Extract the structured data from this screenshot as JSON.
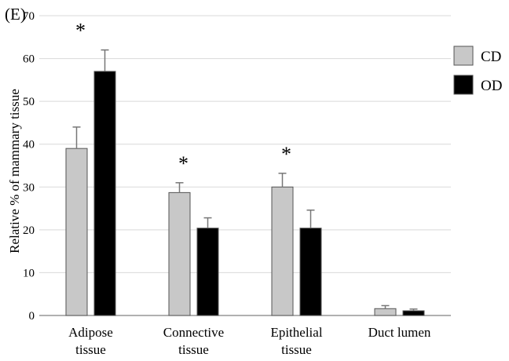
{
  "panel_label": "(E)",
  "chart_data": {
    "type": "bar",
    "title": "",
    "xlabel": "",
    "ylabel": "Relative  % of mammary  tissue",
    "ylim": [
      0,
      70
    ],
    "yticks": [
      0,
      10,
      20,
      30,
      40,
      50,
      60,
      70
    ],
    "grid": true,
    "legend_position": "right",
    "categories": [
      [
        "Adipose",
        "tissue"
      ],
      [
        "Connective",
        "tissue"
      ],
      [
        "Epithelial",
        "tissue"
      ],
      [
        "Duct lumen"
      ]
    ],
    "series": [
      {
        "name": "CD",
        "color": "#c8c8c8",
        "values": [
          39,
          28.7,
          30,
          1.6
        ],
        "errors": [
          5,
          2.3,
          3.2,
          0.7
        ]
      },
      {
        "name": "OD",
        "color": "#000000",
        "values": [
          57,
          20.4,
          20.4,
          1.1
        ],
        "errors": [
          5,
          2.4,
          4.2,
          0.4
        ]
      }
    ],
    "significance": [
      "*",
      "*",
      "*",
      ""
    ]
  }
}
